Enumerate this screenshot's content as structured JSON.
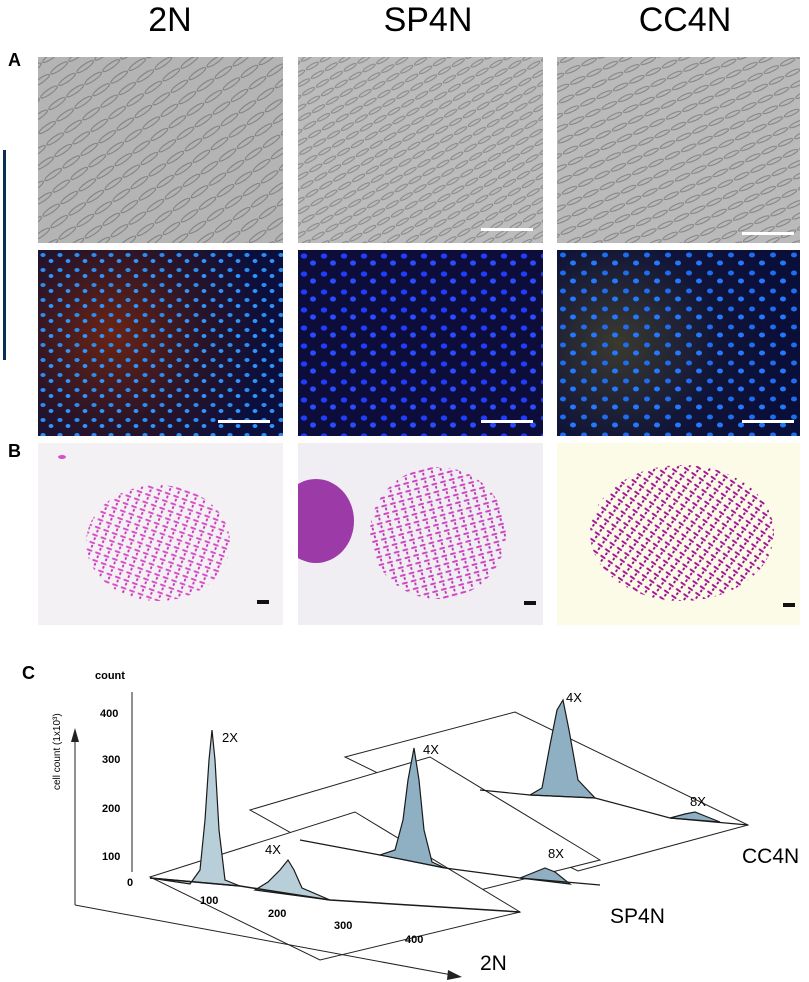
{
  "columns": [
    "2N",
    "SP4N",
    "CC4N"
  ],
  "panels": {
    "a": "A",
    "b": "B",
    "c": "C"
  },
  "chart_data": {
    "type": "area",
    "y_label": "cell count (1x10³)",
    "y_top_label": "count",
    "y_ticks": [
      "0",
      "100",
      "200",
      "300",
      "400"
    ],
    "x_ticks": [
      "100",
      "200",
      "300",
      "400"
    ],
    "series": [
      {
        "name": "2N",
        "peaks": [
          {
            "label": "2X",
            "x": 100,
            "y": 370
          },
          {
            "label": "4X",
            "x": 210,
            "y": 60
          }
        ]
      },
      {
        "name": "SP4N",
        "peaks": [
          {
            "label": "4X",
            "x": 205,
            "y": 330
          },
          {
            "label": "8X",
            "x": 400,
            "y": 25
          }
        ]
      },
      {
        "name": "CC4N",
        "peaks": [
          {
            "label": "4X",
            "x": 205,
            "y": 310
          },
          {
            "label": "8X",
            "x": 400,
            "y": 20
          }
        ]
      }
    ]
  }
}
